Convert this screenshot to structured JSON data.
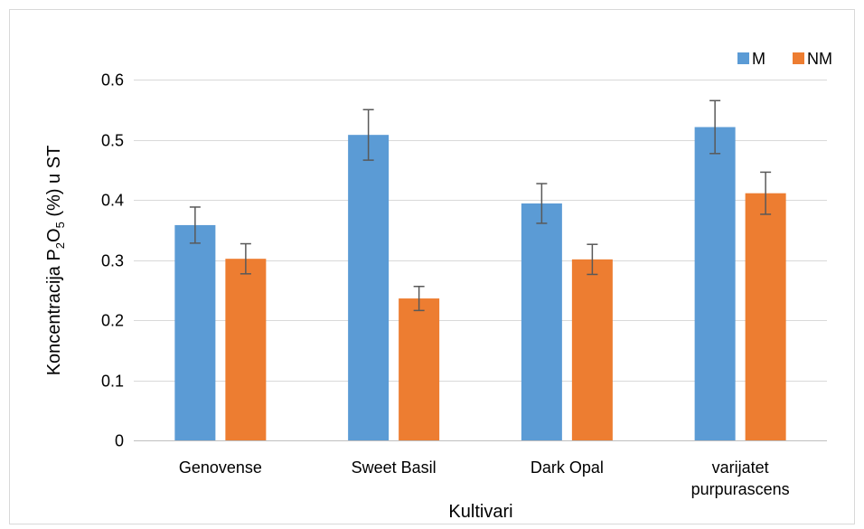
{
  "chart_data": {
    "type": "bar",
    "title": "",
    "xlabel": "Kultivari",
    "ylabel": {
      "prefix": "Koncentracija P",
      "sub1": "2",
      "mid": "O",
      "sub2": "5",
      "suffix": " (%) u ST"
    },
    "categories": [
      [
        "Genovense"
      ],
      [
        "Sweet Basil"
      ],
      [
        "Dark Opal"
      ],
      [
        "varijatet",
        "purpurascens"
      ]
    ],
    "series": [
      {
        "name": "M",
        "color": "#5B9BD5",
        "values": [
          0.358,
          0.508,
          0.394,
          0.521
        ],
        "errors": [
          0.03,
          0.042,
          0.033,
          0.044
        ]
      },
      {
        "name": "NM",
        "color": "#ED7D31",
        "values": [
          0.302,
          0.236,
          0.301,
          0.411
        ],
        "errors": [
          0.025,
          0.02,
          0.025,
          0.035
        ]
      }
    ],
    "ylim": [
      0,
      0.6
    ],
    "yticks": [
      "0",
      "0.1",
      "0.2",
      "0.3",
      "0.4",
      "0.5",
      "0.6"
    ],
    "grid": true,
    "legend": "top-right",
    "gridColor": "#d9d9d9",
    "axisColor": "#bfbfbf",
    "errorBarColor": "#595959"
  }
}
